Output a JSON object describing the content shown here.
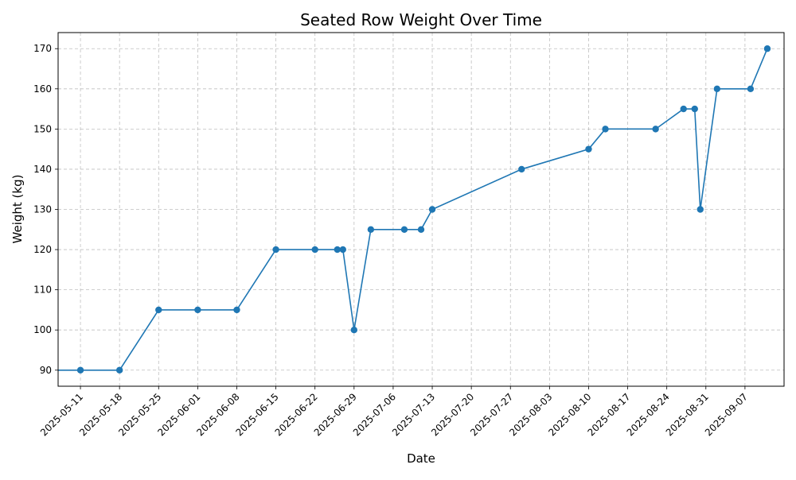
{
  "chart_data": {
    "type": "line",
    "title": "Seated Row Weight Over Time",
    "xlabel": "Date",
    "ylabel": "Weight (kg)",
    "grid": true,
    "legend": false,
    "color": "#1f77b4",
    "xlim": [
      "2025-05-07",
      "2025-09-14"
    ],
    "ylim": [
      86,
      174
    ],
    "x_ticks": [
      "2025-05-11",
      "2025-05-18",
      "2025-05-25",
      "2025-06-01",
      "2025-06-08",
      "2025-06-15",
      "2025-06-22",
      "2025-06-29",
      "2025-07-06",
      "2025-07-13",
      "2025-07-20",
      "2025-07-27",
      "2025-08-03",
      "2025-08-10",
      "2025-08-17",
      "2025-08-24",
      "2025-08-31",
      "2025-09-07"
    ],
    "y_ticks": [
      90,
      100,
      110,
      120,
      130,
      140,
      150,
      160,
      170
    ],
    "series": [
      {
        "points": [
          {
            "x": "2025-05-04",
            "y": 90
          },
          {
            "x": "2025-05-11",
            "y": 90
          },
          {
            "x": "2025-05-18",
            "y": 90
          },
          {
            "x": "2025-05-25",
            "y": 105
          },
          {
            "x": "2025-06-01",
            "y": 105
          },
          {
            "x": "2025-06-08",
            "y": 105
          },
          {
            "x": "2025-06-15",
            "y": 120
          },
          {
            "x": "2025-06-22",
            "y": 120
          },
          {
            "x": "2025-06-26",
            "y": 120
          },
          {
            "x": "2025-06-27",
            "y": 120
          },
          {
            "x": "2025-06-29",
            "y": 100
          },
          {
            "x": "2025-07-02",
            "y": 125
          },
          {
            "x": "2025-07-08",
            "y": 125
          },
          {
            "x": "2025-07-11",
            "y": 125
          },
          {
            "x": "2025-07-13",
            "y": 130
          },
          {
            "x": "2025-07-29",
            "y": 140
          },
          {
            "x": "2025-08-10",
            "y": 145
          },
          {
            "x": "2025-08-13",
            "y": 150
          },
          {
            "x": "2025-08-22",
            "y": 150
          },
          {
            "x": "2025-08-27",
            "y": 155
          },
          {
            "x": "2025-08-29",
            "y": 155
          },
          {
            "x": "2025-08-30",
            "y": 130
          },
          {
            "x": "2025-09-02",
            "y": 160
          },
          {
            "x": "2025-09-08",
            "y": 160
          },
          {
            "x": "2025-09-11",
            "y": 170
          }
        ]
      }
    ]
  }
}
